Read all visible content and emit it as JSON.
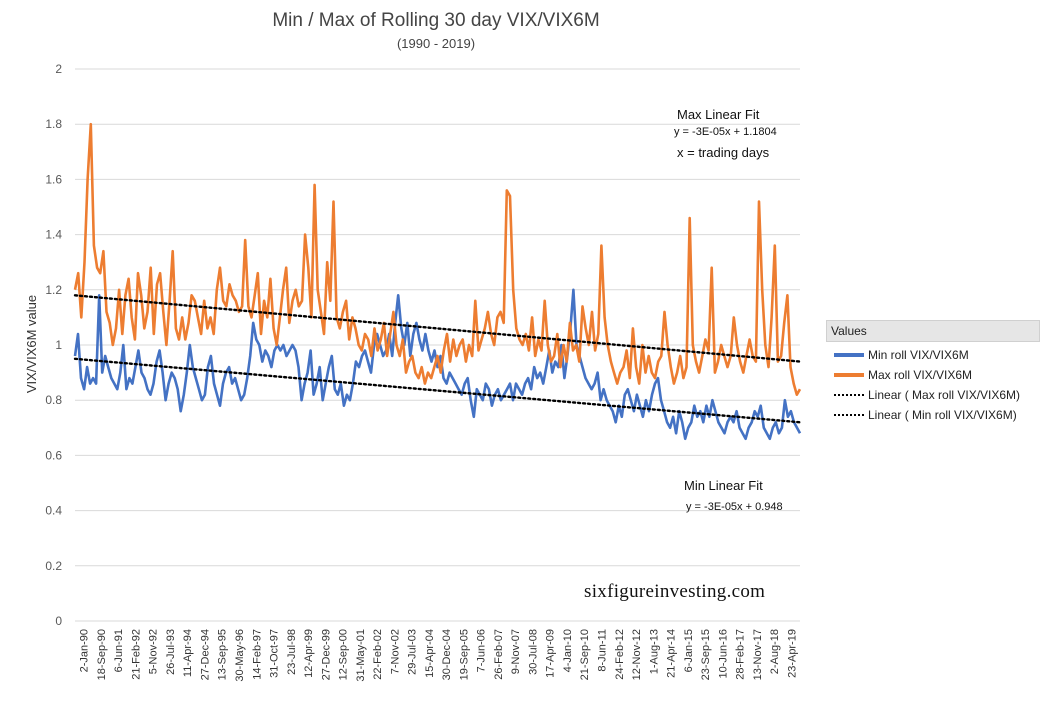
{
  "chart_data": {
    "type": "line",
    "title": "Min / Max of Rolling 30 day VIX/VIX6M",
    "subtitle": "(1990 - 2019)",
    "ylabel": "VIX/VIX6M value",
    "xlabel": "",
    "ylim": [
      0,
      2
    ],
    "yticks": [
      "0",
      "0.2",
      "0.4",
      "0.6",
      "0.8",
      "1",
      "1.2",
      "1.4",
      "1.6",
      "1.8",
      "2"
    ],
    "grid": true,
    "legend_placement": "right",
    "legend_title": "Values",
    "x_tick_labels": [
      "2-Jan-90",
      "18-Sep-90",
      "6-Jun-91",
      "21-Feb-92",
      "5-Nov-92",
      "26-Jul-93",
      "11-Apr-94",
      "27-Dec-94",
      "13-Sep-95",
      "30-May-96",
      "14-Feb-97",
      "31-Oct-97",
      "23-Jul-98",
      "12-Apr-99",
      "27-Dec-99",
      "12-Sep-00",
      "31-May-01",
      "22-Feb-02",
      "7-Nov-02",
      "29-Jul-03",
      "15-Apr-04",
      "30-Dec-04",
      "19-Sep-05",
      "7-Jun-06",
      "26-Feb-07",
      "9-Nov-07",
      "30-Jul-08",
      "17-Apr-09",
      "4-Jan-10",
      "21-Sep-10",
      "8-Jun-11",
      "24-Feb-12",
      "12-Nov-12",
      "1-Aug-13",
      "21-Apr-14",
      "6-Jan-15",
      "23-Sep-15",
      "10-Jun-16",
      "28-Feb-17",
      "13-Nov-17",
      "2-Aug-18",
      "23-Apr-19"
    ],
    "series": [
      {
        "name": "Min roll VIX/VIX6M",
        "color": "#4472c4",
        "values": [
          0.96,
          1.04,
          0.88,
          0.84,
          0.92,
          0.86,
          0.88,
          0.86,
          1.18,
          0.9,
          0.96,
          0.92,
          0.88,
          0.86,
          0.84,
          0.9,
          1.0,
          0.84,
          0.88,
          0.86,
          0.92,
          0.98,
          0.9,
          0.88,
          0.84,
          0.82,
          0.86,
          0.94,
          0.98,
          0.9,
          0.8,
          0.86,
          0.9,
          0.88,
          0.84,
          0.76,
          0.82,
          0.9,
          1.0,
          0.92,
          0.88,
          0.84,
          0.8,
          0.82,
          0.92,
          0.96,
          0.86,
          0.82,
          0.78,
          0.86,
          0.9,
          0.92,
          0.86,
          0.88,
          0.84,
          0.8,
          0.82,
          0.88,
          0.96,
          1.08,
          1.02,
          1.0,
          0.94,
          0.98,
          0.96,
          0.92,
          0.98,
          1.0,
          0.98,
          1.0,
          0.96,
          0.98,
          1.0,
          0.98,
          0.92,
          0.8,
          0.86,
          0.9,
          0.98,
          0.82,
          0.86,
          0.92,
          0.8,
          0.86,
          0.92,
          0.96,
          0.84,
          0.82,
          0.86,
          0.78,
          0.82,
          0.8,
          0.86,
          0.94,
          0.92,
          0.96,
          0.98,
          0.94,
          0.9,
          1.0,
          1.04,
          1.0,
          0.96,
          0.98,
          1.04,
          0.96,
          1.08,
          1.18,
          1.06,
          1.0,
          1.08,
          0.96,
          1.04,
          1.08,
          1.02,
          0.98,
          1.04,
          0.98,
          0.94,
          0.98,
          0.92,
          0.96,
          0.88,
          0.86,
          0.9,
          0.88,
          0.86,
          0.84,
          0.82,
          0.86,
          0.88,
          0.8,
          0.74,
          0.84,
          0.82,
          0.8,
          0.86,
          0.84,
          0.78,
          0.82,
          0.84,
          0.8,
          0.82,
          0.84,
          0.86,
          0.8,
          0.86,
          0.84,
          0.82,
          0.86,
          0.88,
          0.84,
          0.92,
          0.88,
          0.9,
          0.86,
          0.92,
          0.98,
          0.9,
          0.94,
          0.92,
          1.0,
          0.88,
          0.96,
          1.06,
          1.2,
          1.0,
          0.96,
          0.92,
          0.88,
          0.86,
          0.84,
          0.86,
          0.9,
          0.8,
          0.84,
          0.8,
          0.78,
          0.76,
          0.72,
          0.78,
          0.74,
          0.82,
          0.84,
          0.8,
          0.76,
          0.82,
          0.78,
          0.74,
          0.8,
          0.76,
          0.82,
          0.86,
          0.88,
          0.8,
          0.76,
          0.72,
          0.7,
          0.74,
          0.68,
          0.76,
          0.72,
          0.66,
          0.7,
          0.72,
          0.78,
          0.74,
          0.76,
          0.72,
          0.78,
          0.74,
          0.8,
          0.76,
          0.72,
          0.7,
          0.68,
          0.72,
          0.74,
          0.72,
          0.76,
          0.7,
          0.68,
          0.66,
          0.7,
          0.72,
          0.76,
          0.74,
          0.78,
          0.7,
          0.68,
          0.66,
          0.7,
          0.72,
          0.68,
          0.7,
          0.8,
          0.74,
          0.76,
          0.72,
          0.7,
          0.68
        ]
      },
      {
        "name": "Max roll VIX/VIX6M",
        "color": "#ed7d31",
        "values": [
          1.2,
          1.26,
          1.1,
          1.3,
          1.6,
          1.8,
          1.36,
          1.28,
          1.26,
          1.34,
          1.12,
          1.08,
          1.0,
          1.06,
          1.2,
          1.04,
          1.18,
          1.24,
          1.1,
          1.02,
          1.26,
          1.18,
          1.06,
          1.12,
          1.28,
          1.04,
          1.22,
          1.26,
          1.12,
          1.0,
          1.16,
          1.34,
          1.06,
          1.02,
          1.1,
          1.02,
          1.08,
          1.18,
          1.16,
          1.1,
          1.04,
          1.16,
          1.06,
          1.1,
          1.04,
          1.2,
          1.28,
          1.16,
          1.14,
          1.22,
          1.18,
          1.16,
          1.12,
          1.14,
          1.38,
          1.14,
          1.1,
          1.18,
          1.26,
          1.04,
          1.16,
          1.1,
          1.24,
          1.06,
          1.0,
          1.1,
          1.2,
          1.28,
          1.08,
          1.16,
          1.2,
          1.14,
          1.16,
          1.4,
          1.28,
          1.1,
          1.58,
          1.2,
          1.12,
          1.04,
          1.3,
          1.16,
          1.52,
          1.1,
          1.06,
          1.12,
          1.16,
          1.02,
          1.1,
          1.06,
          1.0,
          0.98,
          1.04,
          1.02,
          0.96,
          1.06,
          0.98,
          1.02,
          1.08,
          0.96,
          1.04,
          1.12,
          1.0,
          0.96,
          1.02,
          0.9,
          0.94,
          0.96,
          0.9,
          0.88,
          0.92,
          0.86,
          0.9,
          0.88,
          0.92,
          0.96,
          0.9,
          0.98,
          1.04,
          0.94,
          1.02,
          0.96,
          1.0,
          1.02,
          0.94,
          1.0,
          0.96,
          1.16,
          0.98,
          1.02,
          1.06,
          1.12,
          1.04,
          1.0,
          1.1,
          1.12,
          1.08,
          1.56,
          1.54,
          1.2,
          1.06,
          1.02,
          1.0,
          1.04,
          0.98,
          1.1,
          0.96,
          1.02,
          0.98,
          1.16,
          1.0,
          0.94,
          0.96,
          1.04,
          0.92,
          1.0,
          0.94,
          1.08,
          0.98,
          1.0,
          0.94,
          1.14,
          1.06,
          1.0,
          1.12,
          0.98,
          1.04,
          1.36,
          1.1,
          1.0,
          0.94,
          0.9,
          0.86,
          0.9,
          0.92,
          0.98,
          0.88,
          1.06,
          0.92,
          0.86,
          1.0,
          0.9,
          0.96,
          0.9,
          0.88,
          0.94,
          0.96,
          1.12,
          1.0,
          0.92,
          0.86,
          0.9,
          0.96,
          0.88,
          0.92,
          1.46,
          1.0,
          0.94,
          0.9,
          0.96,
          1.02,
          0.98,
          1.28,
          0.9,
          0.94,
          1.0,
          0.96,
          0.92,
          0.96,
          1.1,
          1.0,
          0.94,
          0.9,
          0.96,
          1.02,
          0.96,
          0.94,
          1.52,
          1.2,
          1.0,
          0.92,
          1.1,
          1.36,
          0.94,
          0.96,
          1.08,
          1.18,
          0.92,
          0.86,
          0.82,
          0.84
        ]
      },
      {
        "name": "Linear ( Max roll VIX/VIX6M)",
        "color": "#000000",
        "style": "dotted",
        "trend": [
          1.18,
          0.94
        ]
      },
      {
        "name": "Linear ( Min roll VIX/VIX6M)",
        "color": "#000000",
        "style": "dotted",
        "trend": [
          0.95,
          0.72
        ]
      }
    ],
    "annotations": {
      "max_fit_title": "Max Linear Fit",
      "max_fit_eq": "y = -3E-05x + 1.1804",
      "max_fit_x": "x = trading days",
      "min_fit_title": "Min Linear Fit",
      "min_fit_eq": "y = -3E-05x + 0.948"
    }
  },
  "watermark": "sixfigureinvesting.com"
}
